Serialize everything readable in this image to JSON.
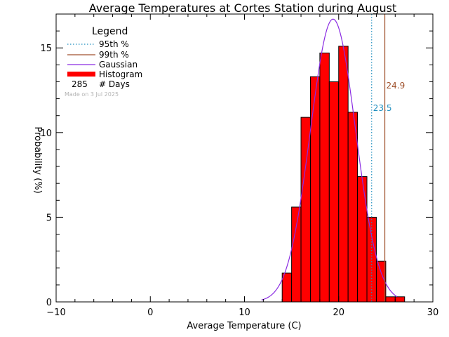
{
  "chart_data": {
    "type": "bar",
    "title": "Average Temperatures at Cortes Station during August",
    "xlabel": "Average Temperature (C)",
    "ylabel": "Probability (%)",
    "xlim": [
      -10,
      30
    ],
    "ylim": [
      0,
      17
    ],
    "x_ticks": [
      -10,
      0,
      10,
      20,
      30
    ],
    "x_tick_labels": [
      "−10",
      "0",
      "10",
      "20",
      "30"
    ],
    "y_ticks": [
      0,
      5,
      10,
      15
    ],
    "y_tick_labels": [
      "0",
      "5",
      "10",
      "15"
    ],
    "grid": false,
    "legend": {
      "title": "Legend",
      "placement": "top-left",
      "items": [
        {
          "label": "95th %",
          "style": "dotted",
          "color": "#1f8fbf"
        },
        {
          "label": "99th %",
          "style": "solid",
          "color": "#a0522d"
        },
        {
          "label": "Gaussian",
          "style": "solid",
          "color": "#8a2be2"
        },
        {
          "label": "Histogram",
          "style": "thick",
          "color": "#ff0000"
        }
      ],
      "days_count": "285",
      "days_label": "# Days"
    },
    "made_on": "Made on 3 Jul 2025",
    "histogram": {
      "bin_edges": [
        14,
        15,
        16,
        17,
        18,
        19,
        20,
        21,
        22,
        23,
        24,
        25,
        26,
        27
      ],
      "values": [
        1.7,
        5.6,
        10.9,
        13.3,
        14.7,
        13.0,
        15.1,
        11.2,
        7.4,
        5.0,
        2.4,
        0.3,
        0.3
      ],
      "fill_color": "#ff0000",
      "edge_color": "#000000"
    },
    "gaussian": {
      "mean": 19.4,
      "sigma": 2.4,
      "peak": 16.7,
      "x_range": [
        11.8,
        26.2
      ],
      "color": "#8a2be2"
    },
    "percentiles": [
      {
        "name": "95th %",
        "value": 23.5,
        "label": "23.5",
        "color": "#1f8fbf",
        "style": "dotted"
      },
      {
        "name": "99th %",
        "value": 24.9,
        "label": "24.9",
        "color": "#a0522d",
        "style": "solid"
      }
    ]
  }
}
